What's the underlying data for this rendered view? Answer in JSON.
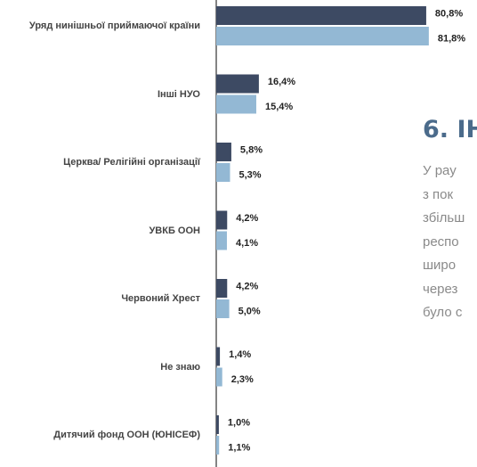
{
  "chart_data": {
    "type": "barh",
    "categories": [
      "Уряд нинішньої приймаючої країни",
      "Інші НУО",
      "Церква/ Релігійні організації",
      "УВКБ ООН",
      "Червоний Хрест",
      "Не знаю",
      "Дитячий фонд ООН (ЮНІСЕФ)"
    ],
    "series": [
      {
        "color": "#3d4a63",
        "values": [
          80.8,
          16.4,
          5.8,
          4.2,
          4.2,
          1.4,
          1.0
        ],
        "value_labels": [
          "80,8%",
          "16,4%",
          "5,8%",
          "4,2%",
          "4,2%",
          "1,4%",
          "1,0%"
        ]
      },
      {
        "color": "#93b8d4",
        "values": [
          81.8,
          15.4,
          5.3,
          4.1,
          5.0,
          2.3,
          1.1
        ],
        "value_labels": [
          "81,8%",
          "15,4%",
          "5,3%",
          "4,1%",
          "5,0%",
          "2,3%",
          "1,1%"
        ]
      }
    ],
    "xlim": [
      0,
      100
    ]
  },
  "section": {
    "heading": "6. ІН",
    "lines": [
      "У рау",
      "з пок",
      "збільш",
      "респо",
      "широ",
      "через",
      "було с"
    ]
  }
}
